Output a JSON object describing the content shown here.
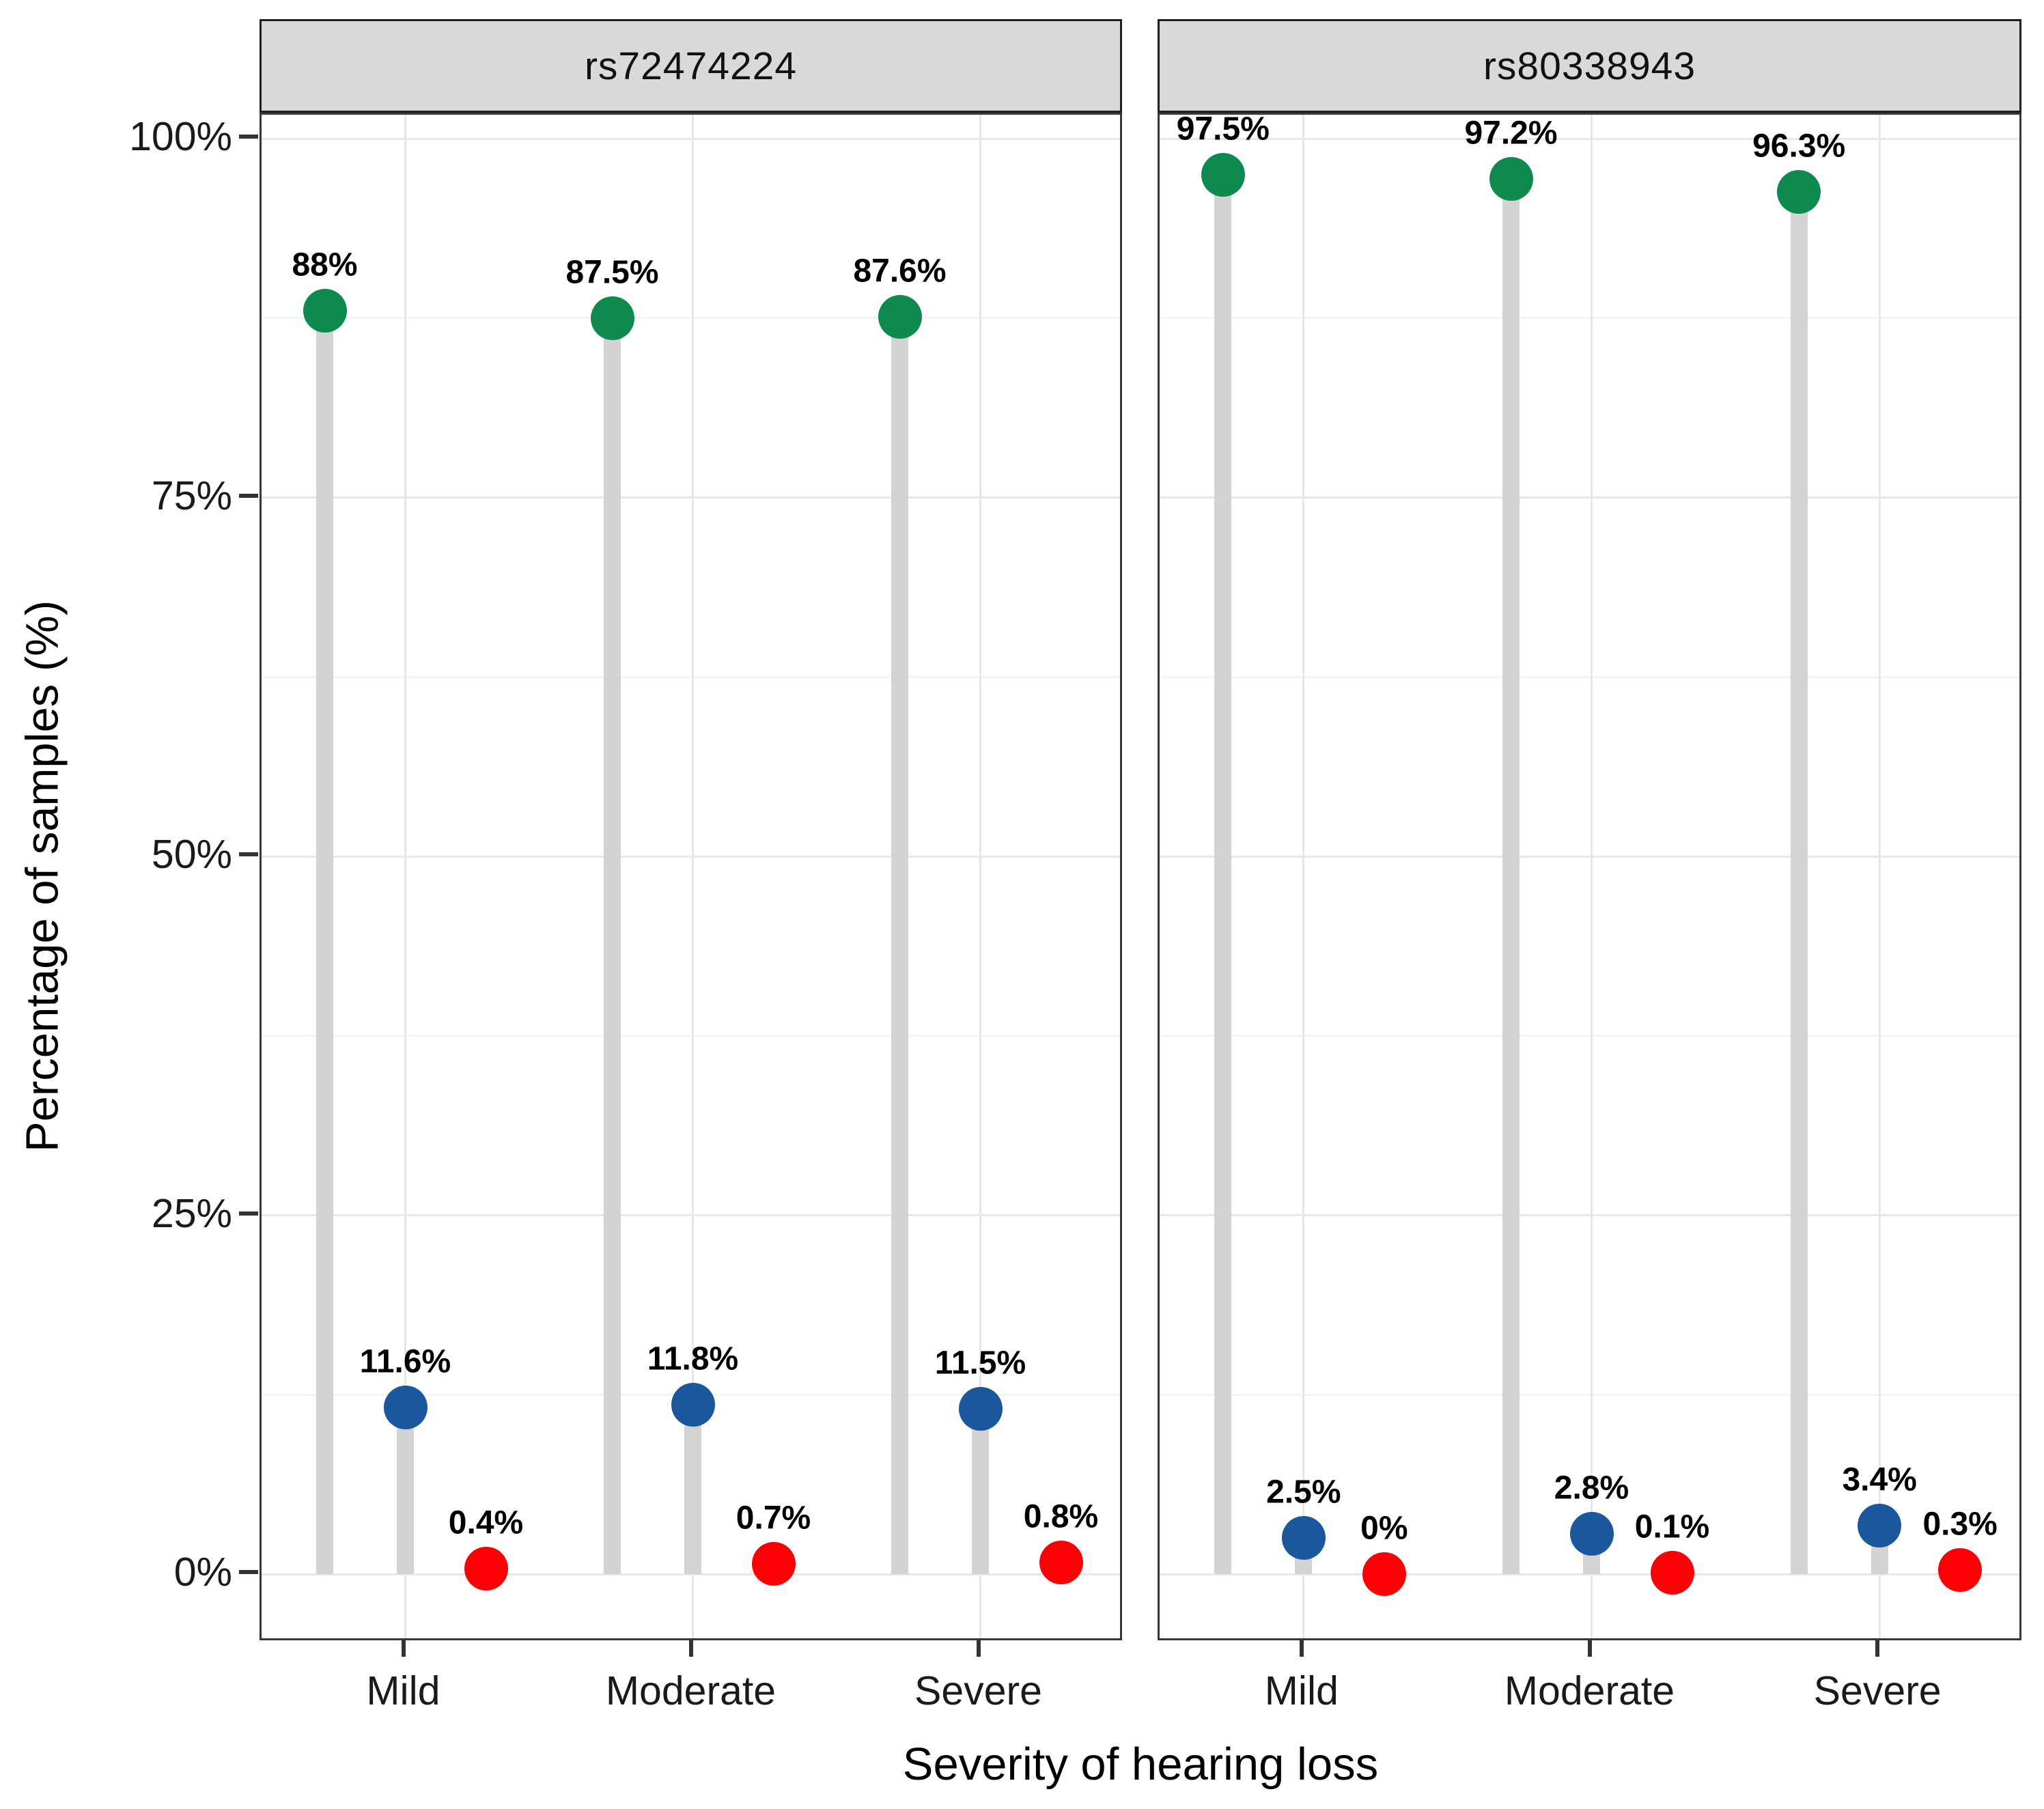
{
  "chart_data": {
    "type": "lollipop",
    "title": "",
    "xlabel": "Severity of hearing loss",
    "ylabel": "Percentage of samples (%)",
    "categories": [
      "Mild",
      "Moderate",
      "Severe"
    ],
    "ylim": [
      0,
      100
    ],
    "y_ticks": [
      0,
      25,
      50,
      75,
      100
    ],
    "y_tick_labels": [
      "0%",
      "25%",
      "50%",
      "75%",
      "100%"
    ],
    "y_minor_ticks": [
      12.5,
      37.5,
      62.5,
      87.5
    ],
    "grid": "on",
    "legend": "none",
    "facets": [
      {
        "title": "rs72474224",
        "series": [
          {
            "name": "green-point-series",
            "color": "#0E8A4F",
            "values": [
              88,
              87.5,
              87.6
            ],
            "labels": [
              "88%",
              "87.5%",
              "87.6%"
            ]
          },
          {
            "name": "blue-point-series",
            "color": "#1A579D",
            "values": [
              11.6,
              11.8,
              11.5
            ],
            "labels": [
              "11.6%",
              "11.8%",
              "11.5%"
            ]
          },
          {
            "name": "red-point-series",
            "color": "#FD0006",
            "values": [
              0.4,
              0.7,
              0.8
            ],
            "labels": [
              "0.4%",
              "0.7%",
              "0.8%"
            ]
          }
        ]
      },
      {
        "title": "rs80338943",
        "series": [
          {
            "name": "green-point-series",
            "color": "#0E8A4F",
            "values": [
              97.5,
              97.2,
              96.3
            ],
            "labels": [
              "97.5%",
              "97.2%",
              "96.3%"
            ]
          },
          {
            "name": "blue-point-series",
            "color": "#1A579D",
            "values": [
              2.5,
              2.8,
              3.4
            ],
            "labels": [
              "2.5%",
              "2.8%",
              "3.4%"
            ]
          },
          {
            "name": "red-point-series",
            "color": "#FD0006",
            "values": [
              0,
              0.1,
              0.3
            ],
            "labels": [
              "0%",
              "0.1%",
              "0.3%"
            ]
          }
        ]
      }
    ],
    "colors": {
      "green": "#0E8A4F",
      "blue": "#1A579D",
      "red": "#FD0006",
      "stem": "#D3D3D3",
      "grid_major": "#E7E7E7",
      "grid_minor": "#F4F4F4",
      "strip_background": "#D9D9D9",
      "panel_border": "#383838"
    }
  }
}
